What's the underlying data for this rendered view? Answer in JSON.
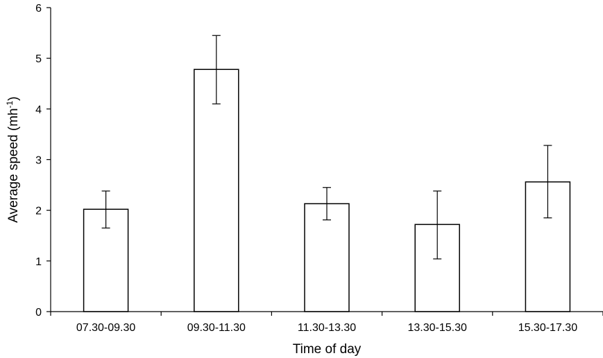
{
  "chart_data": {
    "type": "bar",
    "title": "",
    "categories": [
      "07.30-09.30",
      "09.30-11.30",
      "11.30-13.30",
      "13.30-15.30",
      "15.30-17.30"
    ],
    "values": [
      2.02,
      4.78,
      2.13,
      1.72,
      2.56
    ],
    "error_low": [
      1.65,
      4.1,
      1.81,
      1.04,
      1.85
    ],
    "error_high": [
      2.38,
      5.45,
      2.45,
      2.38,
      3.28
    ],
    "xlabel": "Time of day",
    "ylabel": "Average speed (mh",
    "ylabel_superscript": "-1",
    "ylabel_close": ")",
    "ylim": [
      0,
      6
    ],
    "yticks": [
      "0",
      "1",
      "2",
      "3",
      "4",
      "5",
      "6"
    ],
    "grid": false,
    "legend": "none",
    "colors": {
      "bar_fill": "#ffffff",
      "bar_stroke": "#000000",
      "axis": "#000000"
    }
  }
}
